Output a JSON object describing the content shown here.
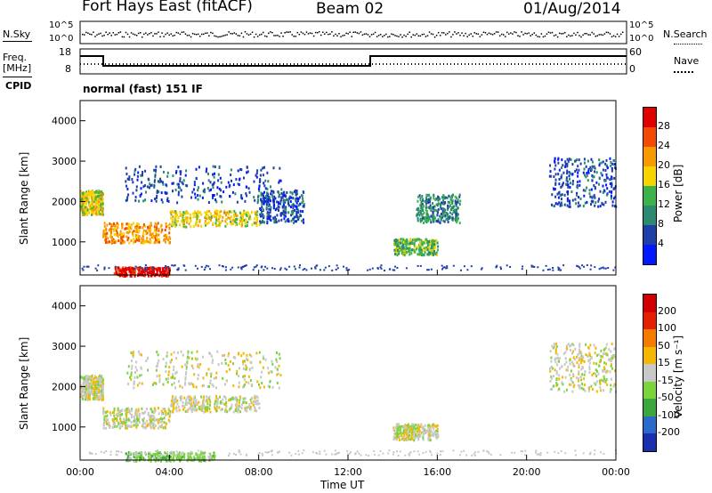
{
  "header": {
    "station": "Fort Hays East (fitACF)",
    "beam": "Beam 02",
    "date": "01/Aug/2014"
  },
  "side_labels": {
    "nsky": "N.Sky",
    "nsearch": "N.Search",
    "freq_top": "Freq.",
    "freq_unit": "[MHz]",
    "cpid": "CPID",
    "nave": "Nave",
    "cpid_text": "normal (fast) 151 IF"
  },
  "noise_axis": {
    "left": [
      "10^5",
      "10^0"
    ],
    "right": [
      "10^5",
      "10^0"
    ]
  },
  "freq_axis": {
    "left": [
      "18",
      "8"
    ],
    "right": [
      "60",
      "0"
    ]
  },
  "colors": {
    "freq_line": "#000000",
    "nave_dots": "#000000",
    "noise_dots": "#000000"
  },
  "chart_data": [
    {
      "type": "heatmap",
      "title": "",
      "xlabel": "Time UT",
      "ylabel": "Slant Range [km]",
      "xticks": [
        "00:00",
        "04:00",
        "08:00",
        "12:00",
        "16:00",
        "20:00",
        "00:00"
      ],
      "yticks": [
        "1000",
        "2000",
        "3000",
        "4000"
      ],
      "ylim": [
        180,
        4500
      ],
      "xlim_hours": [
        0,
        24
      ],
      "colorbar": {
        "label": "Power [dB]",
        "ticks": [
          "4",
          "8",
          "12",
          "16",
          "20",
          "24",
          "28"
        ],
        "colors": [
          "#0019ff",
          "#1e3ea8",
          "#2b8a6f",
          "#3bb24a",
          "#f7d400",
          "#f79a00",
          "#f24a00",
          "#e00000"
        ]
      },
      "regions": [
        {
          "t": [
            0,
            1
          ],
          "r": [
            1700,
            2300
          ],
          "level": 4
        },
        {
          "t": [
            1,
            4
          ],
          "r": [
            1000,
            1500
          ],
          "level": 5
        },
        {
          "t": [
            4,
            8
          ],
          "r": [
            1400,
            1800
          ],
          "level": 4
        },
        {
          "t": [
            8,
            10
          ],
          "r": [
            1500,
            2300
          ],
          "level": 1
        },
        {
          "t": [
            2,
            9
          ],
          "r": [
            2000,
            2900
          ],
          "level": 1
        },
        {
          "t": [
            14,
            16
          ],
          "r": [
            700,
            1100
          ],
          "level": 3
        },
        {
          "t": [
            15,
            17
          ],
          "r": [
            1500,
            2200
          ],
          "level": 2
        },
        {
          "t": [
            21,
            24
          ],
          "r": [
            1900,
            3100
          ],
          "level": 1
        },
        {
          "t": [
            1.5,
            4
          ],
          "r": [
            180,
            400
          ],
          "level": 7
        }
      ]
    },
    {
      "type": "heatmap",
      "title": "",
      "xlabel": "Time UT",
      "ylabel": "Slant Range [km]",
      "xticks": [
        "00:00",
        "04:00",
        "08:00",
        "12:00",
        "16:00",
        "20:00",
        "00:00"
      ],
      "yticks": [
        "1000",
        "2000",
        "3000",
        "4000"
      ],
      "ylim": [
        180,
        4500
      ],
      "xlim_hours": [
        0,
        24
      ],
      "colorbar": {
        "label": "Velocity [m s⁻¹]",
        "ticks": [
          "200",
          "100",
          "50",
          "15",
          "-15",
          "-50",
          "-100",
          "-200"
        ],
        "colors": [
          "#1a2fb0",
          "#2a6acb",
          "#3aa83a",
          "#7ad43a",
          "#c8c8c8",
          "#f5b800",
          "#f57a00",
          "#e52000",
          "#d00000"
        ]
      },
      "regions": [
        {
          "t": [
            0,
            1
          ],
          "r": [
            1700,
            2300
          ],
          "level": 4
        },
        {
          "t": [
            1,
            4
          ],
          "r": [
            1000,
            1500
          ],
          "level": 4
        },
        {
          "t": [
            4,
            8
          ],
          "r": [
            1400,
            1800
          ],
          "level": 4
        },
        {
          "t": [
            2,
            9
          ],
          "r": [
            2000,
            2900
          ],
          "level": 4
        },
        {
          "t": [
            14,
            16
          ],
          "r": [
            700,
            1100
          ],
          "level": 4
        },
        {
          "t": [
            21,
            24
          ],
          "r": [
            1900,
            3100
          ],
          "level": 4
        },
        {
          "t": [
            2,
            6
          ],
          "r": [
            180,
            400
          ],
          "level": 3
        }
      ]
    }
  ]
}
